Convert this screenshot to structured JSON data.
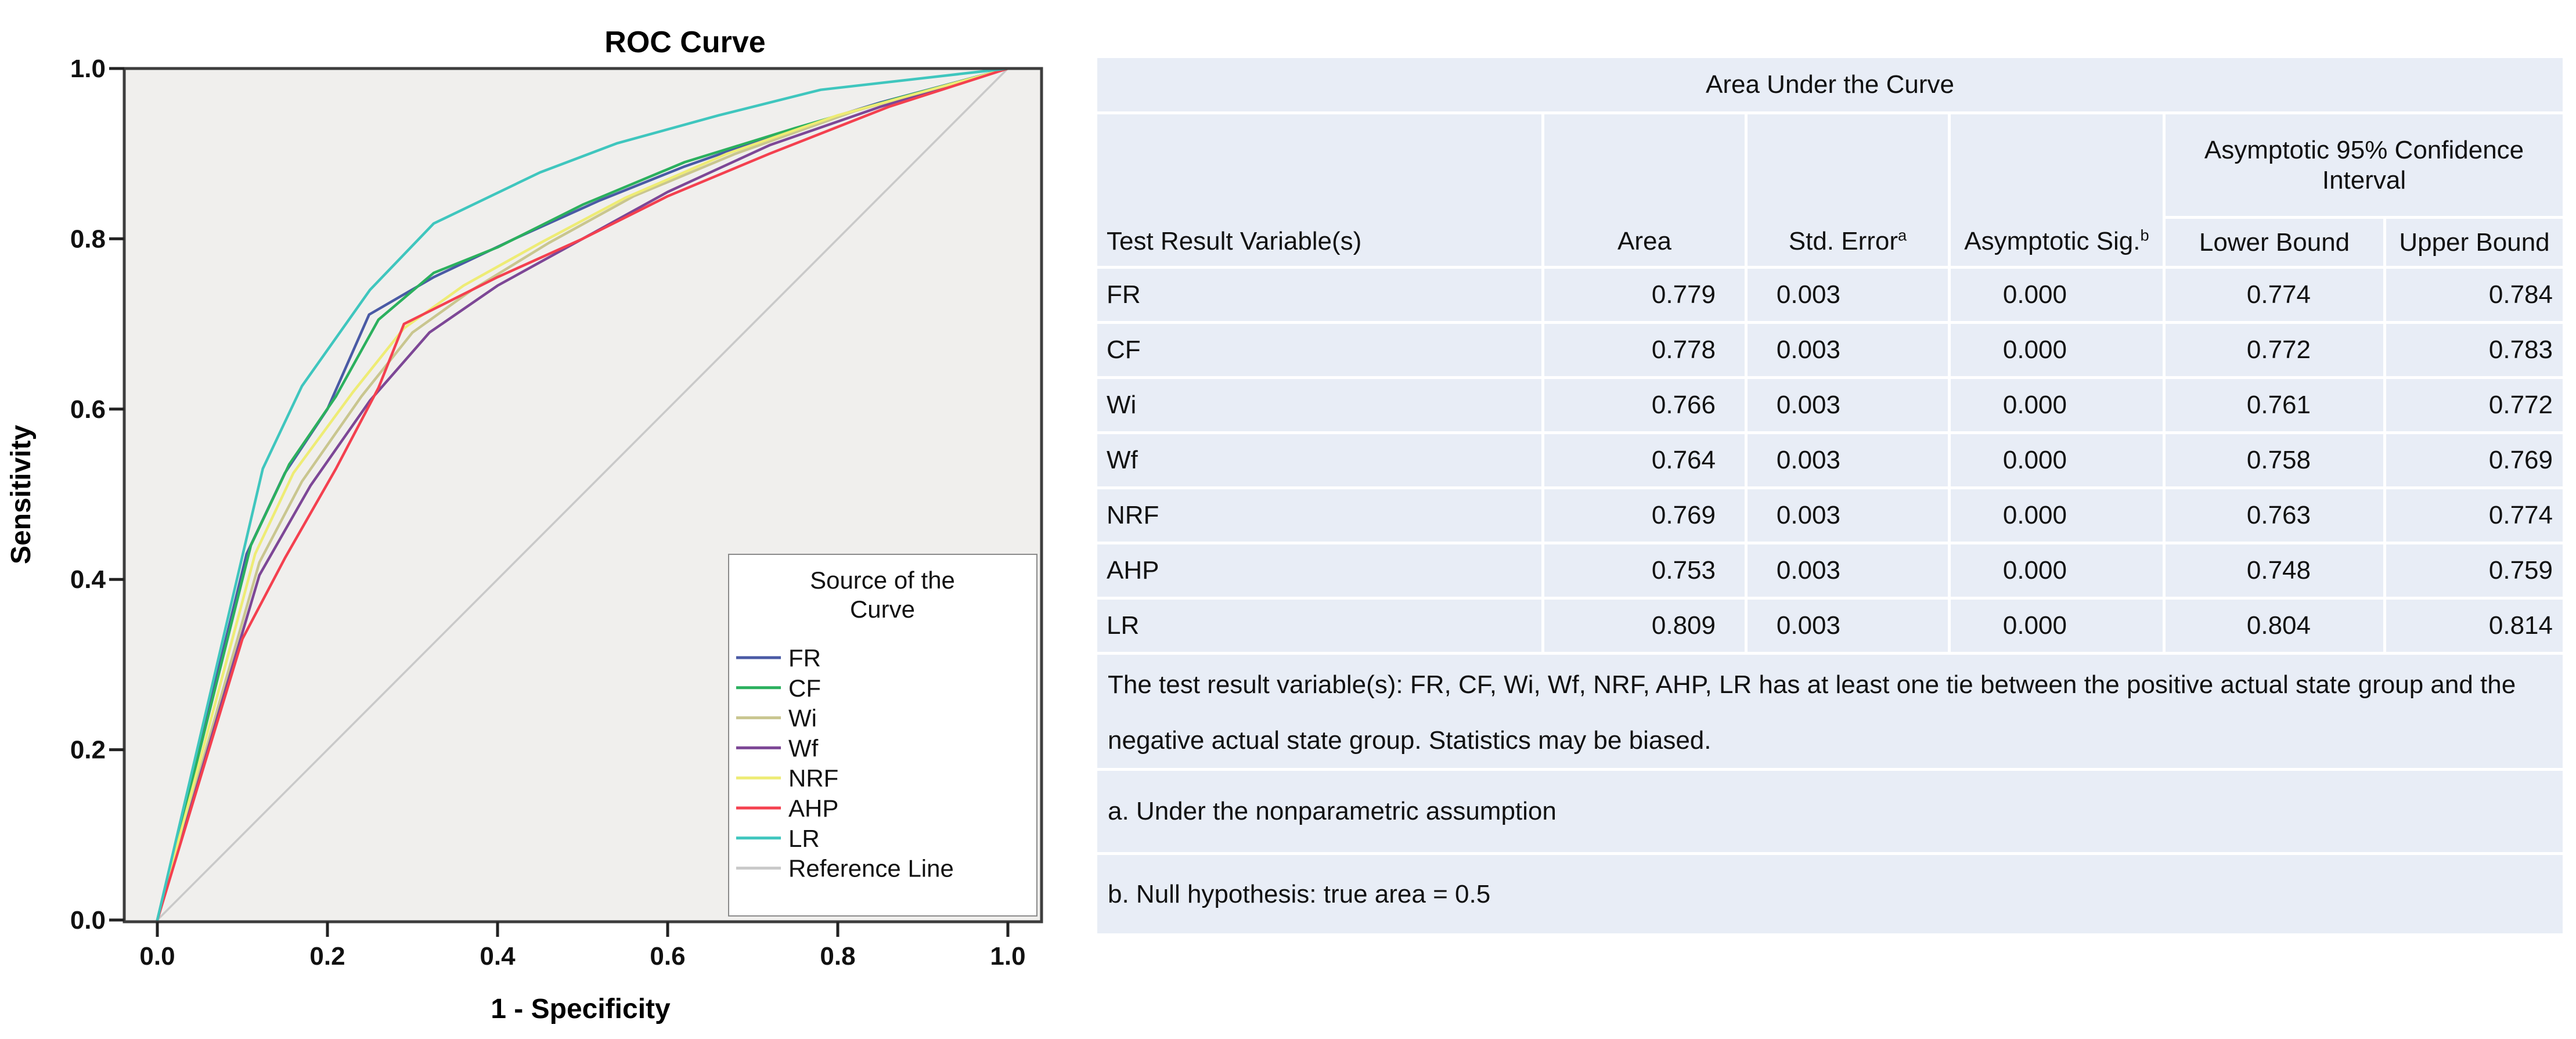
{
  "chart": {
    "title": "ROC Curve",
    "x_axis_label": "1 - Specificity",
    "y_axis_label": "Sensitivity"
  },
  "chart_data": {
    "type": "line",
    "title": "ROC Curve",
    "xlabel": "1 - Specificity",
    "ylabel": "Sensitivity",
    "xlim": [
      0.0,
      1.0
    ],
    "ylim": [
      0.0,
      1.0
    ],
    "xticklabels": [
      "0.0",
      "0.2",
      "0.4",
      "0.6",
      "0.8",
      "1.0"
    ],
    "yticklabels": [
      "0.0",
      "0.2",
      "0.4",
      "0.6",
      "0.8",
      "1.0"
    ],
    "grid": false,
    "plot_background": "#f0efed",
    "legend": {
      "title_lines": [
        "Source of the",
        "Curve"
      ],
      "position": "lower-right-inside"
    },
    "series": [
      {
        "name": "FR",
        "color": "#4a5aa5",
        "points": [
          [
            0,
            0
          ],
          [
            0.105,
            0.43
          ],
          [
            0.15,
            0.525
          ],
          [
            0.2,
            0.6
          ],
          [
            0.249,
            0.711
          ],
          [
            0.325,
            0.755
          ],
          [
            0.42,
            0.8
          ],
          [
            0.52,
            0.845
          ],
          [
            0.62,
            0.885
          ],
          [
            0.72,
            0.92
          ],
          [
            0.85,
            0.96
          ],
          [
            1,
            1
          ]
        ]
      },
      {
        "name": "CF",
        "color": "#2bb05e",
        "points": [
          [
            0,
            0
          ],
          [
            0.11,
            0.44
          ],
          [
            0.155,
            0.535
          ],
          [
            0.21,
            0.615
          ],
          [
            0.26,
            0.705
          ],
          [
            0.325,
            0.76
          ],
          [
            0.4,
            0.79
          ],
          [
            0.5,
            0.84
          ],
          [
            0.62,
            0.89
          ],
          [
            0.75,
            0.93
          ],
          [
            0.87,
            0.965
          ],
          [
            1,
            1
          ]
        ]
      },
      {
        "name": "Wi",
        "color": "#c9c68f",
        "points": [
          [
            0,
            0
          ],
          [
            0.12,
            0.42
          ],
          [
            0.17,
            0.515
          ],
          [
            0.24,
            0.615
          ],
          [
            0.3,
            0.69
          ],
          [
            0.37,
            0.74
          ],
          [
            0.46,
            0.795
          ],
          [
            0.56,
            0.85
          ],
          [
            0.68,
            0.9
          ],
          [
            0.82,
            0.95
          ],
          [
            1,
            1
          ]
        ]
      },
      {
        "name": "Wf",
        "color": "#7d4796",
        "points": [
          [
            0,
            0
          ],
          [
            0.12,
            0.405
          ],
          [
            0.18,
            0.51
          ],
          [
            0.25,
            0.61
          ],
          [
            0.32,
            0.69
          ],
          [
            0.4,
            0.745
          ],
          [
            0.5,
            0.8
          ],
          [
            0.6,
            0.855
          ],
          [
            0.72,
            0.91
          ],
          [
            0.85,
            0.955
          ],
          [
            1,
            1
          ]
        ]
      },
      {
        "name": "NRF",
        "color": "#eeec75",
        "points": [
          [
            0,
            0
          ],
          [
            0.115,
            0.43
          ],
          [
            0.16,
            0.525
          ],
          [
            0.23,
            0.62
          ],
          [
            0.29,
            0.695
          ],
          [
            0.36,
            0.745
          ],
          [
            0.45,
            0.795
          ],
          [
            0.55,
            0.848
          ],
          [
            0.67,
            0.9
          ],
          [
            0.8,
            0.945
          ],
          [
            1,
            1
          ]
        ]
      },
      {
        "name": "AHP",
        "color": "#f4404f",
        "points": [
          [
            0,
            0
          ],
          [
            0.1,
            0.33
          ],
          [
            0.15,
            0.425
          ],
          [
            0.21,
            0.53
          ],
          [
            0.26,
            0.625
          ],
          [
            0.29,
            0.7
          ],
          [
            0.4,
            0.755
          ],
          [
            0.5,
            0.8
          ],
          [
            0.6,
            0.85
          ],
          [
            0.72,
            0.9
          ],
          [
            0.86,
            0.955
          ],
          [
            1,
            1
          ]
        ]
      },
      {
        "name": "LR",
        "color": "#3fc6be",
        "points": [
          [
            0,
            0
          ],
          [
            0.124,
            0.53
          ],
          [
            0.17,
            0.627
          ],
          [
            0.25,
            0.74
          ],
          [
            0.325,
            0.818
          ],
          [
            0.45,
            0.878
          ],
          [
            0.54,
            0.912
          ],
          [
            0.66,
            0.945
          ],
          [
            0.78,
            0.975
          ],
          [
            1,
            1
          ]
        ]
      }
    ],
    "reference": {
      "name": "Reference Line",
      "color": "#c9c9c9",
      "points": [
        [
          0,
          0
        ],
        [
          1,
          1
        ]
      ]
    }
  },
  "table": {
    "title": "Area Under the Curve",
    "header": {
      "col1": "Test Result Variable(s)",
      "col2": "Area",
      "col3": {
        "label": "Std. Error",
        "sup": "a"
      },
      "col4": {
        "label": "Asymptotic Sig.",
        "sup": "b"
      },
      "ci_group": "Asymptotic 95% Confidence Interval",
      "col5": "Lower Bound",
      "col6": "Upper Bound"
    },
    "rows": [
      {
        "variable": "FR",
        "area": "0.779",
        "std_error": "0.003",
        "sig": "0.000",
        "lower": "0.774",
        "upper": "0.784"
      },
      {
        "variable": "CF",
        "area": "0.778",
        "std_error": "0.003",
        "sig": "0.000",
        "lower": "0.772",
        "upper": "0.783"
      },
      {
        "variable": "Wi",
        "area": "0.766",
        "std_error": "0.003",
        "sig": "0.000",
        "lower": "0.761",
        "upper": "0.772"
      },
      {
        "variable": "Wf",
        "area": "0.764",
        "std_error": "0.003",
        "sig": "0.000",
        "lower": "0.758",
        "upper": "0.769"
      },
      {
        "variable": "NRF",
        "area": "0.769",
        "std_error": "0.003",
        "sig": "0.000",
        "lower": "0.763",
        "upper": "0.774"
      },
      {
        "variable": "AHP",
        "area": "0.753",
        "std_error": "0.003",
        "sig": "0.000",
        "lower": "0.748",
        "upper": "0.759"
      },
      {
        "variable": "LR",
        "area": "0.809",
        "std_error": "0.003",
        "sig": "0.000",
        "lower": "0.804",
        "upper": "0.814"
      }
    ],
    "footnotes": {
      "tie_note": "The test result variable(s): FR, CF, Wi, Wf, NRF, AHP, LR has at least one tie between the positive actual state group and the negative actual state group. Statistics may be biased.",
      "a": "a. Under the nonparametric assumption",
      "b": "b. Null hypothesis: true area = 0.5"
    }
  }
}
